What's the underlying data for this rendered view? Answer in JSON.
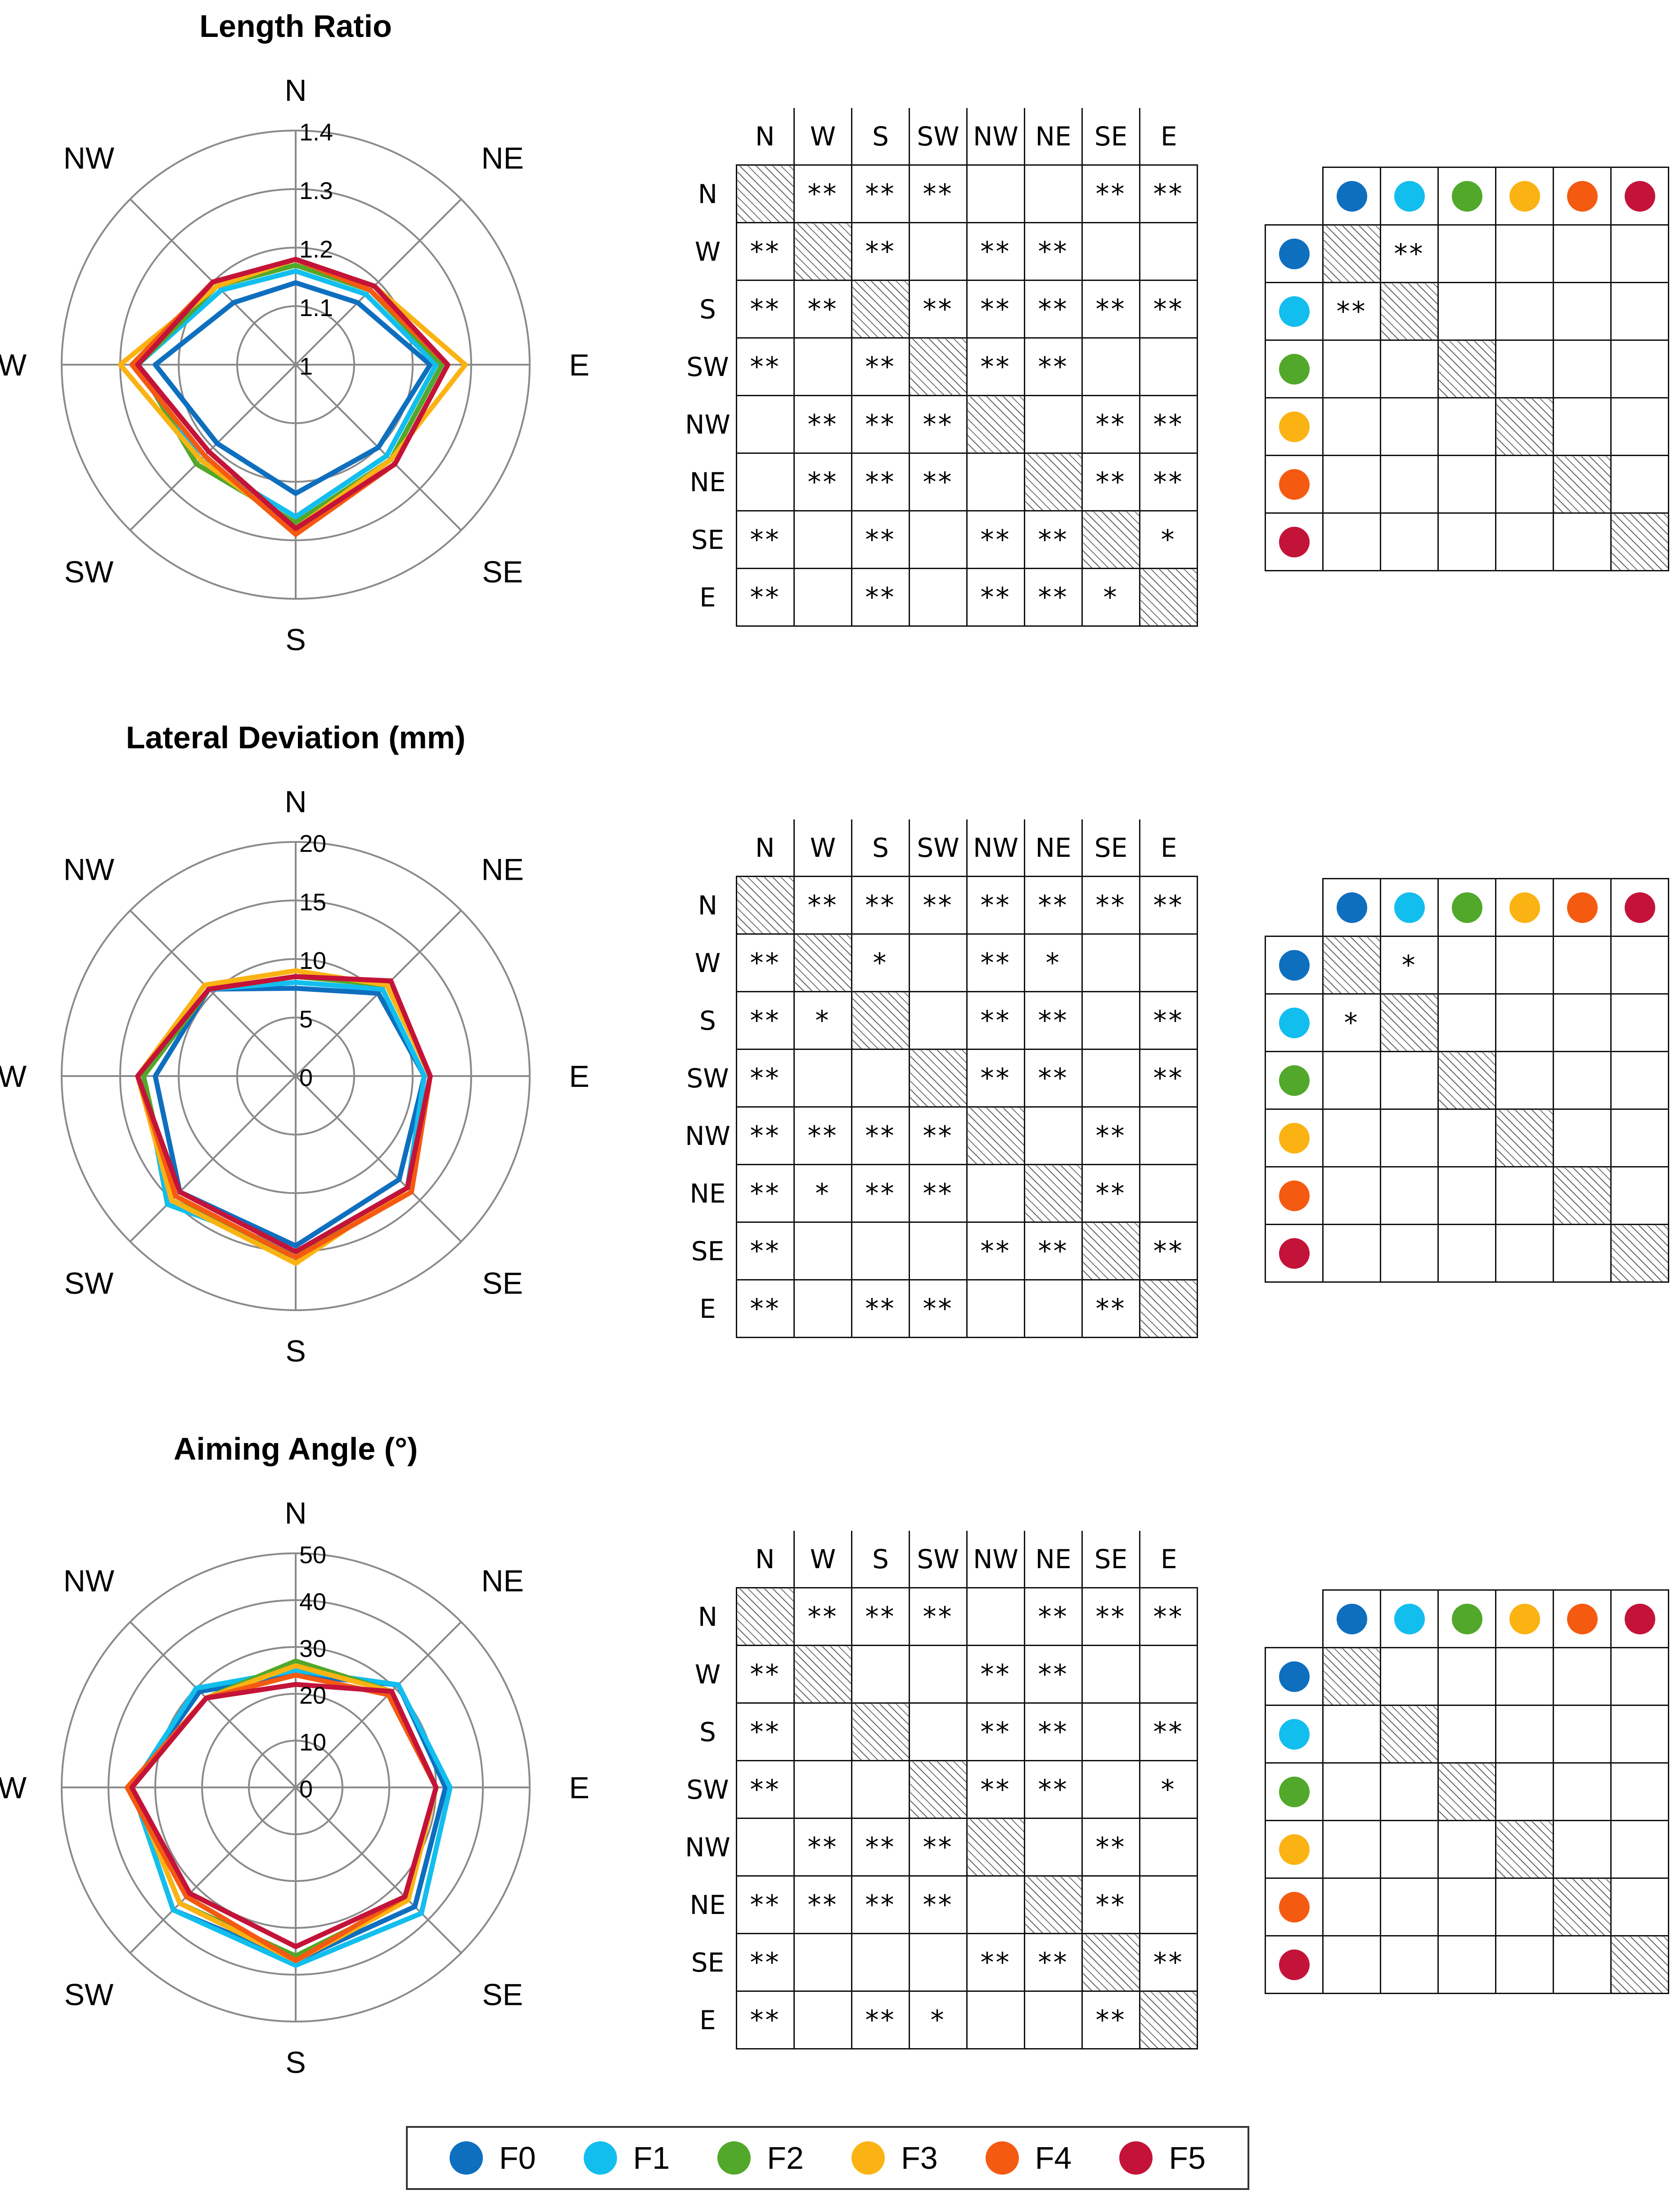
{
  "groups": [
    {
      "name": "F0",
      "color": "#0E6FBF"
    },
    {
      "name": "F1",
      "color": "#12BEEE"
    },
    {
      "name": "F2",
      "color": "#52A82A"
    },
    {
      "name": "F3",
      "color": "#FBB313"
    },
    {
      "name": "F4",
      "color": "#F55A11"
    },
    {
      "name": "F5",
      "color": "#C41339"
    }
  ],
  "directions": [
    "N",
    "NE",
    "E",
    "SE",
    "S",
    "SW",
    "W",
    "NW"
  ],
  "matrix_headers": [
    "N",
    "W",
    "S",
    "SW",
    "NW",
    "NE",
    "SE",
    "E"
  ],
  "chart_data": [
    {
      "type": "radar",
      "title": "Length Ratio",
      "categories": [
        "N",
        "NE",
        "E",
        "SE",
        "S",
        "SW",
        "W",
        "NW"
      ],
      "range": [
        1,
        1.4
      ],
      "ticks": [
        "1",
        "1.1",
        "1.2",
        "1.3",
        "1.4"
      ],
      "tick_values": [
        1,
        1.1,
        1.2,
        1.3,
        1.4
      ],
      "series": [
        {
          "name": "F0",
          "values": [
            1.14,
            1.15,
            1.23,
            1.2,
            1.22,
            1.19,
            1.24,
            1.15
          ]
        },
        {
          "name": "F1",
          "values": [
            1.16,
            1.17,
            1.24,
            1.22,
            1.26,
            1.23,
            1.27,
            1.18
          ]
        },
        {
          "name": "F2",
          "values": [
            1.17,
            1.18,
            1.25,
            1.23,
            1.27,
            1.24,
            1.27,
            1.19
          ]
        },
        {
          "name": "F3",
          "values": [
            1.18,
            1.19,
            1.29,
            1.23,
            1.28,
            1.23,
            1.3,
            1.19
          ]
        },
        {
          "name": "F4",
          "values": [
            1.18,
            1.18,
            1.26,
            1.24,
            1.29,
            1.22,
            1.28,
            1.2
          ]
        },
        {
          "name": "F5",
          "values": [
            1.18,
            1.19,
            1.26,
            1.24,
            1.28,
            1.21,
            1.27,
            1.2
          ]
        }
      ]
    },
    {
      "type": "radar",
      "title": "Lateral Deviation (mm)",
      "categories": [
        "N",
        "NE",
        "E",
        "SE",
        "S",
        "SW",
        "W",
        "NW"
      ],
      "range": [
        0,
        20
      ],
      "ticks": [
        "0",
        "5",
        "10",
        "15",
        "20"
      ],
      "tick_values": [
        0,
        5,
        10,
        15,
        20
      ],
      "series": [
        {
          "name": "F0",
          "values": [
            7.5,
            10.0,
            11.0,
            12.5,
            14.5,
            14.0,
            12.0,
            10.5
          ]
        },
        {
          "name": "F1",
          "values": [
            8.0,
            10.5,
            11.0,
            13.5,
            15.0,
            15.5,
            13.0,
            10.5
          ]
        },
        {
          "name": "F2",
          "values": [
            8.5,
            11.0,
            11.5,
            13.5,
            15.5,
            15.0,
            13.0,
            10.5
          ]
        },
        {
          "name": "F3",
          "values": [
            9.0,
            11.0,
            11.5,
            13.5,
            16.0,
            15.0,
            13.5,
            11.0
          ]
        },
        {
          "name": "F4",
          "values": [
            8.5,
            11.5,
            11.5,
            14.0,
            15.5,
            14.5,
            13.5,
            10.5
          ]
        },
        {
          "name": "F5",
          "values": [
            8.5,
            11.5,
            11.5,
            13.5,
            15.0,
            14.0,
            13.5,
            10.5
          ]
        }
      ]
    },
    {
      "type": "radar",
      "title": "Aiming Angle (°)",
      "categories": [
        "N",
        "NE",
        "E",
        "SE",
        "S",
        "SW",
        "W",
        "NW"
      ],
      "range": [
        0,
        50
      ],
      "ticks": [
        "0",
        "10",
        "20",
        "30",
        "40",
        "50"
      ],
      "tick_values": [
        0,
        10,
        20,
        30,
        40,
        50
      ],
      "series": [
        {
          "name": "F0",
          "values": [
            24,
            31,
            32,
            36,
            37,
            37,
            35,
            29
          ]
        },
        {
          "name": "F1",
          "values": [
            25,
            31,
            33,
            38,
            38,
            37,
            35,
            30
          ]
        },
        {
          "name": "F2",
          "values": [
            27,
            29,
            30,
            34,
            36,
            35,
            35,
            27
          ]
        },
        {
          "name": "F3",
          "values": [
            26,
            29,
            30,
            34,
            37,
            35,
            35,
            27
          ]
        },
        {
          "name": "F4",
          "values": [
            24,
            28,
            30,
            33,
            37,
            33,
            36,
            27
          ]
        },
        {
          "name": "F5",
          "values": [
            22,
            29,
            30,
            33,
            34,
            32,
            35,
            27
          ]
        }
      ]
    }
  ],
  "direction_significance": [
    [
      [
        "",
        "**",
        "**",
        "**",
        "",
        "",
        "**",
        "**"
      ],
      [
        "**",
        "",
        "**",
        "",
        "**",
        "**",
        "",
        ""
      ],
      [
        "**",
        "**",
        "",
        "**",
        "**",
        "**",
        "**",
        "**"
      ],
      [
        "**",
        "",
        "**",
        "",
        "**",
        "**",
        "",
        ""
      ],
      [
        "",
        "**",
        "**",
        "**",
        "",
        "",
        "**",
        "**"
      ],
      [
        "",
        "**",
        "**",
        "**",
        "",
        "",
        "**",
        "**"
      ],
      [
        "**",
        "",
        "**",
        "",
        "**",
        "**",
        "",
        "*"
      ],
      [
        "**",
        "",
        "**",
        "",
        "**",
        "**",
        "*",
        ""
      ]
    ],
    [
      [
        "",
        "**",
        "**",
        "**",
        "**",
        "**",
        "**",
        "**"
      ],
      [
        "**",
        "",
        "*",
        "",
        "**",
        "*",
        "",
        ""
      ],
      [
        "**",
        "*",
        "",
        "",
        "**",
        "**",
        "",
        "**"
      ],
      [
        "**",
        "",
        "",
        "",
        "**",
        "**",
        "",
        "**"
      ],
      [
        "**",
        "**",
        "**",
        "**",
        "",
        "",
        "**",
        ""
      ],
      [
        "**",
        "*",
        "**",
        "**",
        "",
        "",
        "**",
        ""
      ],
      [
        "**",
        "",
        "",
        "",
        "**",
        "**",
        "",
        "**"
      ],
      [
        "**",
        "",
        "**",
        "**",
        "",
        "",
        "**",
        ""
      ]
    ],
    [
      [
        "",
        "**",
        "**",
        "**",
        "",
        "**",
        "**",
        "**"
      ],
      [
        "**",
        "",
        "",
        "",
        "**",
        "**",
        "",
        ""
      ],
      [
        "**",
        "",
        "",
        "",
        "**",
        "**",
        "",
        "**"
      ],
      [
        "**",
        "",
        "",
        "",
        "**",
        "**",
        "",
        "*"
      ],
      [
        "",
        "**",
        "**",
        "**",
        "",
        "",
        "**",
        ""
      ],
      [
        "**",
        "**",
        "**",
        "**",
        "",
        "",
        "**",
        ""
      ],
      [
        "**",
        "",
        "",
        "",
        "**",
        "**",
        "",
        "**"
      ],
      [
        "**",
        "",
        "**",
        "*",
        "",
        "",
        "**",
        ""
      ]
    ]
  ],
  "group_significance": [
    [
      [
        "",
        "**",
        "",
        "",
        "",
        ""
      ],
      [
        "**",
        "",
        "",
        "",
        "",
        ""
      ],
      [
        "",
        "",
        "",
        "",
        "",
        ""
      ],
      [
        "",
        "",
        "",
        "",
        "",
        ""
      ],
      [
        "",
        "",
        "",
        "",
        "",
        ""
      ],
      [
        "",
        "",
        "",
        "",
        "",
        ""
      ]
    ],
    [
      [
        "",
        "*",
        "",
        "",
        "",
        ""
      ],
      [
        "*",
        "",
        "",
        "",
        "",
        ""
      ],
      [
        "",
        "",
        "",
        "",
        "",
        ""
      ],
      [
        "",
        "",
        "",
        "",
        "",
        ""
      ],
      [
        "",
        "",
        "",
        "",
        "",
        ""
      ],
      [
        "",
        "",
        "",
        "",
        "",
        ""
      ]
    ],
    [
      [
        "",
        "",
        "",
        "",
        "",
        ""
      ],
      [
        "",
        "",
        "",
        "",
        "",
        ""
      ],
      [
        "",
        "",
        "",
        "",
        "",
        ""
      ],
      [
        "",
        "",
        "",
        "",
        "",
        ""
      ],
      [
        "",
        "",
        "",
        "",
        "",
        ""
      ],
      [
        "",
        "",
        "",
        "",
        "",
        ""
      ]
    ]
  ]
}
